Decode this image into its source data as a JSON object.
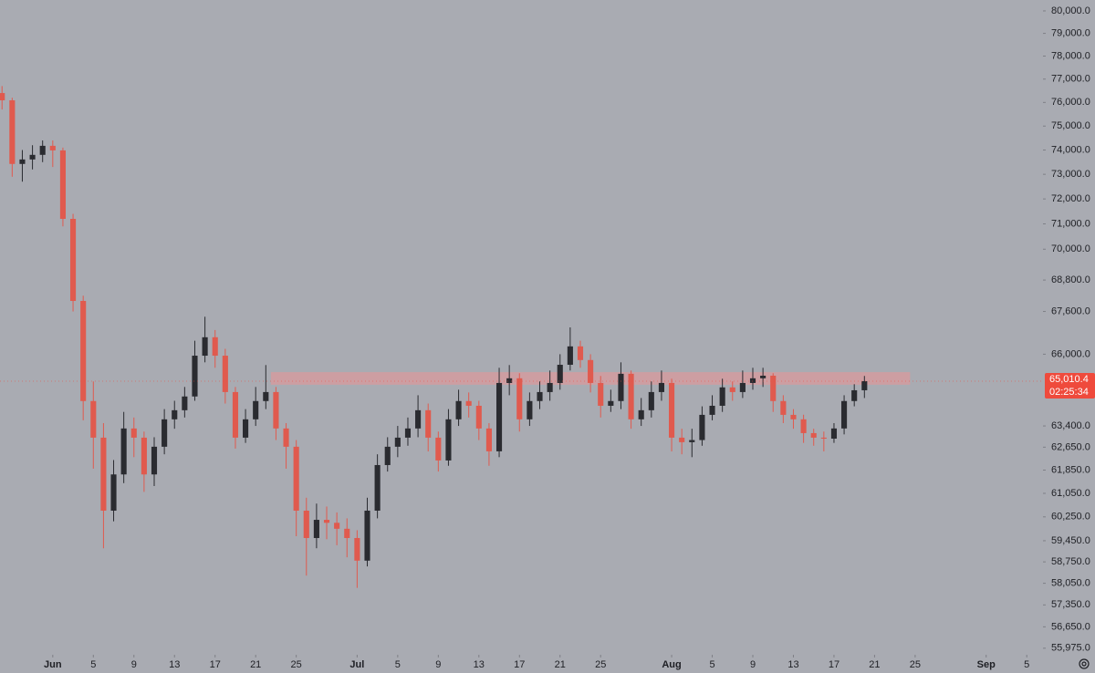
{
  "chart_data": {
    "type": "candlestick",
    "log_scale": true,
    "up_color": "#2a2b30",
    "down_color": "#e05a4e",
    "x": [
      -5,
      -4,
      -3,
      -2,
      -1,
      0,
      1,
      2,
      3,
      4,
      5,
      6,
      7,
      8,
      9,
      10,
      11,
      12,
      13,
      14,
      15,
      16,
      17,
      18,
      19,
      20,
      21,
      22,
      23,
      24,
      25,
      26,
      27,
      28,
      29,
      30,
      31,
      32,
      33,
      34,
      35,
      36,
      37,
      38,
      39,
      40,
      41,
      42,
      43,
      44,
      45,
      46,
      47,
      48,
      49,
      50,
      51,
      52,
      53,
      54,
      55,
      56,
      57,
      58,
      59,
      60,
      61,
      62,
      63,
      64,
      65,
      66,
      67,
      68,
      69,
      70,
      71,
      72,
      73,
      74,
      75,
      76,
      77,
      78,
      79,
      80
    ],
    "open": [
      76400,
      76090,
      73425,
      73610,
      73800,
      74175,
      73985,
      71200,
      68000,
      64290,
      62985,
      60460,
      61700,
      63310,
      62985,
      61700,
      62665,
      63635,
      63960,
      64455,
      65945,
      66630,
      65945,
      64615,
      62985,
      63635,
      64290,
      64615,
      63310,
      62665,
      60460,
      59540,
      60150,
      60050,
      59850,
      59540,
      58790,
      60460,
      62025,
      62665,
      62985,
      63310,
      63960,
      62985,
      62185,
      63635,
      64290,
      64120,
      63310,
      62505,
      64945,
      65115,
      63635,
      64290,
      64615,
      64945,
      65610,
      66290,
      65785,
      64945,
      64120,
      64290,
      65280,
      63635,
      63960,
      64615,
      64945,
      62985,
      62825,
      62900,
      63795,
      64120,
      64785,
      64615,
      64945,
      65115,
      65210,
      64290,
      63795,
      63635,
      63145,
      62985,
      62950,
      63310,
      64290,
      64680
    ],
    "high": [
      76700,
      76200,
      74000,
      74200,
      74400,
      74400,
      74100,
      71400,
      68200,
      65000,
      63500,
      62200,
      63900,
      63700,
      63200,
      63000,
      64000,
      64300,
      64800,
      66500,
      67400,
      66900,
      66200,
      64800,
      64000,
      64800,
      65600,
      64800,
      63500,
      62900,
      60900,
      60700,
      60600,
      60400,
      60200,
      59800,
      60900,
      62400,
      63000,
      63400,
      63700,
      64500,
      64200,
      63200,
      64000,
      64700,
      64600,
      64300,
      63500,
      65500,
      65600,
      65300,
      64600,
      65000,
      65400,
      66000,
      67000,
      66500,
      66000,
      65200,
      64700,
      65700,
      65400,
      64400,
      65000,
      65400,
      65100,
      63300,
      63300,
      64100,
      64500,
      65100,
      65000,
      65400,
      65500,
      65500,
      65300,
      64500,
      64000,
      63800,
      63300,
      63200,
      63500,
      64500,
      64900,
      65200
    ],
    "low": [
      75700,
      72900,
      72700,
      73200,
      73500,
      73300,
      70900,
      67600,
      63600,
      61900,
      59200,
      60100,
      61400,
      62300,
      61100,
      61300,
      62400,
      63300,
      63700,
      64300,
      65700,
      65500,
      64200,
      62600,
      62800,
      63400,
      64000,
      62900,
      61900,
      59600,
      58300,
      59200,
      59500,
      59300,
      58900,
      57900,
      58600,
      60200,
      61800,
      62300,
      62700,
      63000,
      62500,
      61800,
      62000,
      63400,
      63700,
      62900,
      62000,
      62300,
      64500,
      63200,
      63400,
      64000,
      64300,
      64700,
      65400,
      65500,
      64600,
      63700,
      63900,
      64000,
      63300,
      63400,
      63700,
      64300,
      62500,
      62400,
      62300,
      62700,
      63600,
      63900,
      64300,
      64400,
      64700,
      64800,
      63900,
      63500,
      63300,
      62800,
      62700,
      62500,
      62800,
      63100,
      64100,
      64400
    ],
    "close": [
      76090,
      73425,
      73610,
      73800,
      74175,
      73985,
      71200,
      68000,
      64290,
      62985,
      60460,
      61700,
      63310,
      62985,
      61700,
      62665,
      63635,
      63960,
      64455,
      65945,
      66630,
      65945,
      64615,
      62985,
      63635,
      64290,
      64615,
      63310,
      62665,
      60460,
      59540,
      60150,
      60050,
      59850,
      59540,
      58790,
      60460,
      62025,
      62665,
      62985,
      63310,
      63960,
      62985,
      62185,
      63635,
      64290,
      64120,
      63310,
      62505,
      64945,
      65115,
      63635,
      64290,
      64615,
      64945,
      65610,
      66290,
      65785,
      64945,
      64120,
      64290,
      65280,
      63635,
      63960,
      64615,
      64945,
      62985,
      62825,
      62900,
      63795,
      64120,
      64785,
      64615,
      64945,
      65115,
      65210,
      64290,
      63795,
      63635,
      63145,
      62985,
      62950,
      63310,
      64290,
      64680,
      65010.4
    ],
    "xlim": [
      -5.2,
      97.6
    ],
    "ylim": [
      55770,
      80490
    ],
    "xticks": [
      {
        "value": 0,
        "label": "Jun"
      },
      {
        "value": 4,
        "label": "5"
      },
      {
        "value": 8,
        "label": "9"
      },
      {
        "value": 12,
        "label": "13"
      },
      {
        "value": 16,
        "label": "17"
      },
      {
        "value": 20,
        "label": "21"
      },
      {
        "value": 24,
        "label": "25"
      },
      {
        "value": 30,
        "label": "Jul"
      },
      {
        "value": 34,
        "label": "5"
      },
      {
        "value": 38,
        "label": "9"
      },
      {
        "value": 42,
        "label": "13"
      },
      {
        "value": 46,
        "label": "17"
      },
      {
        "value": 50,
        "label": "21"
      },
      {
        "value": 54,
        "label": "25"
      },
      {
        "value": 61,
        "label": "Aug"
      },
      {
        "value": 65,
        "label": "5"
      },
      {
        "value": 69,
        "label": "9"
      },
      {
        "value": 73,
        "label": "13"
      },
      {
        "value": 77,
        "label": "17"
      },
      {
        "value": 81,
        "label": "21"
      },
      {
        "value": 85,
        "label": "25"
      },
      {
        "value": 92,
        "label": "Sep"
      },
      {
        "value": 96,
        "label": "5"
      }
    ],
    "yticks": [
      {
        "value": 80000,
        "label": "80,000.0"
      },
      {
        "value": 79000,
        "label": "79,000.0"
      },
      {
        "value": 78000,
        "label": "78,000.0"
      },
      {
        "value": 77000,
        "label": "77,000.0"
      },
      {
        "value": 76000,
        "label": "76,000.0"
      },
      {
        "value": 75000,
        "label": "75,000.0"
      },
      {
        "value": 74000,
        "label": "74,000.0"
      },
      {
        "value": 73000,
        "label": "73,000.0"
      },
      {
        "value": 72000,
        "label": "72,000.0"
      },
      {
        "value": 71000,
        "label": "71,000.0"
      },
      {
        "value": 70000,
        "label": "70,000.0"
      },
      {
        "value": 68800,
        "label": "68,800.0"
      },
      {
        "value": 67600,
        "label": "67,600.0"
      },
      {
        "value": 66000,
        "label": "66,000.0"
      },
      {
        "value": 63400,
        "label": "63,400.0"
      },
      {
        "value": 62650,
        "label": "62,650.0"
      },
      {
        "value": 61850,
        "label": "61,850.0"
      },
      {
        "value": 61050,
        "label": "61,050.0"
      },
      {
        "value": 60250,
        "label": "60,250.0"
      },
      {
        "value": 59450,
        "label": "59,450.0"
      },
      {
        "value": 58750,
        "label": "58,750.0"
      },
      {
        "value": 58050,
        "label": "58,050.0"
      },
      {
        "value": 57350,
        "label": "57,350.0"
      },
      {
        "value": 56650,
        "label": "56,650.0"
      },
      {
        "value": 55975,
        "label": "55,975.0"
      }
    ],
    "zone": {
      "x": [
        21.5,
        84.5
      ],
      "y": [
        64880,
        65340
      ],
      "color": "#d99a9c"
    },
    "price_label": {
      "value": 65010.4,
      "label": "65,010.4"
    },
    "countdown": "02:25:34",
    "badge_color": "#ef4a3c"
  }
}
